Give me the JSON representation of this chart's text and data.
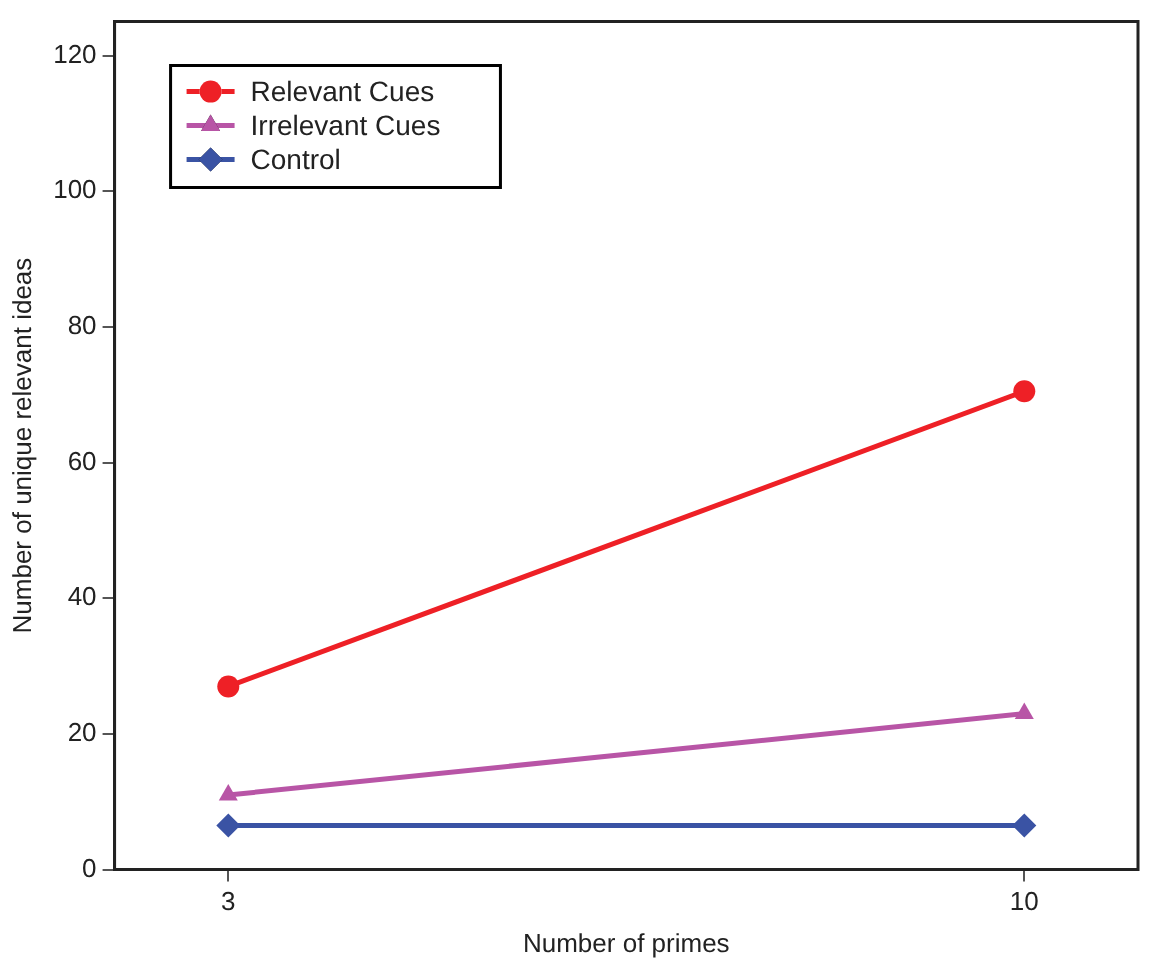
{
  "chart_data": {
    "type": "line",
    "xlabel": "Number of primes",
    "ylabel": "Number of unique relevant ideas",
    "x": [
      3,
      10
    ],
    "series": [
      {
        "name": "Relevant Cues",
        "color": "#ee2026",
        "values": [
          27,
          70.5
        ],
        "marker": "circle"
      },
      {
        "name": "Irrelevant Cues",
        "color": "#b855a6",
        "values": [
          11,
          23
        ],
        "marker": "triangle"
      },
      {
        "name": "Control",
        "color": "#3a53a4",
        "values": [
          6.5,
          6.5
        ],
        "marker": "diamond"
      }
    ],
    "xlim": [
      2,
      11
    ],
    "xticks": [
      3,
      10
    ],
    "ylim": [
      0,
      125
    ],
    "yticks": [
      0,
      20,
      40,
      60,
      80,
      100,
      120
    ],
    "grid": false,
    "legend": "top left",
    "line_style": "solid"
  }
}
